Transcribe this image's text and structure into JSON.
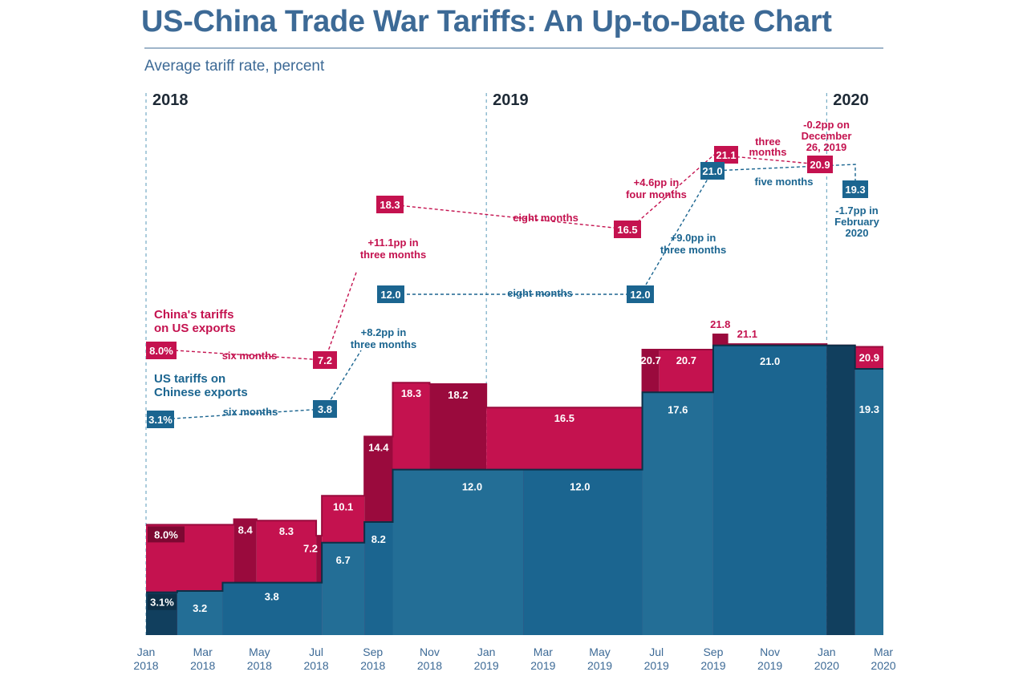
{
  "header": {
    "title": "US-China Trade War Tariffs: An Up-to-Date Chart",
    "subtitle": "Average tariff rate, percent"
  },
  "colors": {
    "china": "#c4124f",
    "china_dark": "#9a0a3d",
    "us": "#1b6590",
    "us_light": "#236e96",
    "us_dark": "#113f5e",
    "axis_text": "#3d6a96",
    "title": "#3d6a96",
    "dash": "#5a9ab9"
  },
  "chart_data": {
    "type": "area",
    "title": "US-China Trade War Tariffs: An Up-to-Date Chart",
    "ylabel": "Average tariff rate, percent",
    "ylim": [
      0,
      23
    ],
    "x_ticks": [
      {
        "label": "Jan",
        "year": "2018",
        "x": 0
      },
      {
        "label": "Mar",
        "year": "2018",
        "x": 2
      },
      {
        "label": "May",
        "year": "2018",
        "x": 4
      },
      {
        "label": "Jul",
        "year": "2018",
        "x": 6
      },
      {
        "label": "Sep",
        "year": "2018",
        "x": 8
      },
      {
        "label": "Nov",
        "year": "2018",
        "x": 10
      },
      {
        "label": "Jan",
        "year": "2019",
        "x": 12
      },
      {
        "label": "Mar",
        "year": "2019",
        "x": 14
      },
      {
        "label": "May",
        "year": "2019",
        "x": 16
      },
      {
        "label": "Jul",
        "year": "2019",
        "x": 18
      },
      {
        "label": "Sep",
        "year": "2019",
        "x": 20
      },
      {
        "label": "Nov",
        "year": "2019",
        "x": 22
      },
      {
        "label": "Jan",
        "year": "2020",
        "x": 24
      },
      {
        "label": "Mar",
        "year": "2020",
        "x": 26
      }
    ],
    "years": [
      {
        "label": "2018",
        "x": 0
      },
      {
        "label": "2019",
        "x": 12
      },
      {
        "label": "2020",
        "x": 24
      }
    ],
    "series": [
      {
        "name": "China's tariffs on US exports",
        "steps": [
          {
            "x0": 0,
            "x1": 3.1,
            "y": 8.0,
            "label": "8.0%"
          },
          {
            "x0": 3.1,
            "x1": 3.9,
            "y": 8.4,
            "label": "8.4"
          },
          {
            "x0": 3.9,
            "x1": 6.0,
            "y": 8.3,
            "label": "8.3"
          },
          {
            "x0": 6.0,
            "x1": 6.2,
            "y": 7.2,
            "label": "7.2"
          },
          {
            "x0": 6.2,
            "x1": 7.7,
            "y": 10.1,
            "label": "10.1"
          },
          {
            "x0": 7.7,
            "x1": 8.7,
            "y": 14.4,
            "label": "14.4"
          },
          {
            "x0": 8.7,
            "x1": 10.0,
            "y": 18.3,
            "label": "18.3"
          },
          {
            "x0": 10.0,
            "x1": 12.0,
            "y": 18.2,
            "label": "18.2"
          },
          {
            "x0": 12.0,
            "x1": 17.5,
            "y": 16.5,
            "label": "16.5"
          },
          {
            "x0": 17.5,
            "x1": 18.1,
            "y": 20.7,
            "label": "20.7"
          },
          {
            "x0": 18.1,
            "x1": 20.0,
            "y": 20.7,
            "label": "20.7"
          },
          {
            "x0": 20.0,
            "x1": 20.5,
            "y": 21.8,
            "label": "21.8"
          },
          {
            "x0": 20.5,
            "x1": 24.0,
            "y": 21.1,
            "label": "21.1"
          },
          {
            "x0": 24.0,
            "x1": 25.0,
            "y": 21.0,
            "label": ""
          },
          {
            "x0": 25.0,
            "x1": 26.0,
            "y": 20.9,
            "label": "20.9"
          }
        ]
      },
      {
        "name": "US tariffs on Chinese exports",
        "steps": [
          {
            "x0": 0,
            "x1": 1.1,
            "y": 3.1,
            "label": "3.1%"
          },
          {
            "x0": 1.1,
            "x1": 2.7,
            "y": 3.2,
            "label": "3.2"
          },
          {
            "x0": 2.7,
            "x1": 6.2,
            "y": 3.8,
            "label": "3.8"
          },
          {
            "x0": 6.2,
            "x1": 7.7,
            "y": 6.7,
            "label": "6.7"
          },
          {
            "x0": 7.7,
            "x1": 8.7,
            "y": 8.2,
            "label": "8.2"
          },
          {
            "x0": 8.7,
            "x1": 13.3,
            "y": 12.0,
            "label": "12.0"
          },
          {
            "x0": 13.3,
            "x1": 17.5,
            "y": 12.0,
            "label": "12.0"
          },
          {
            "x0": 17.5,
            "x1": 20.0,
            "y": 17.6,
            "label": "17.6"
          },
          {
            "x0": 20.0,
            "x1": 24.0,
            "y": 21.0,
            "label": "21.0"
          },
          {
            "x0": 24.0,
            "x1": 25.0,
            "y": 21.0,
            "label": ""
          },
          {
            "x0": 25.0,
            "x1": 26.0,
            "y": 19.3,
            "label": "19.3"
          }
        ]
      }
    ],
    "summary": {
      "china": {
        "label_lines": [
          "China's tariffs",
          "on US exports"
        ],
        "points": [
          {
            "key": "c1",
            "value": "8.0%"
          },
          {
            "key": "c2",
            "value": "7.2"
          },
          {
            "key": "c3",
            "value": "18.3"
          },
          {
            "key": "c4",
            "value": "16.5"
          },
          {
            "key": "c5",
            "value": "21.1"
          },
          {
            "key": "c6",
            "value": "20.9"
          }
        ],
        "annotations": [
          {
            "key": "ca1",
            "lines": [
              "six months"
            ]
          },
          {
            "key": "ca2",
            "lines": [
              "+11.1pp in",
              "three months"
            ]
          },
          {
            "key": "ca3",
            "lines": [
              "eight months"
            ]
          },
          {
            "key": "ca4",
            "lines": [
              "+4.6pp in",
              "four months"
            ]
          },
          {
            "key": "ca5",
            "lines": [
              "three",
              "months"
            ]
          },
          {
            "key": "ca6",
            "lines": [
              "-0.2pp on",
              "December",
              "26, 2019"
            ]
          }
        ]
      },
      "us": {
        "label_lines": [
          "US tariffs on",
          "Chinese exports"
        ],
        "points": [
          {
            "key": "u1",
            "value": "3.1%"
          },
          {
            "key": "u2",
            "value": "3.8"
          },
          {
            "key": "u3",
            "value": "12.0"
          },
          {
            "key": "u4",
            "value": "12.0"
          },
          {
            "key": "u5",
            "value": "21.0"
          },
          {
            "key": "u6",
            "value": "19.3"
          }
        ],
        "annotations": [
          {
            "key": "ua1",
            "lines": [
              "six months"
            ]
          },
          {
            "key": "ua2",
            "lines": [
              "+8.2pp in",
              "three months"
            ]
          },
          {
            "key": "ua3",
            "lines": [
              "eight months"
            ]
          },
          {
            "key": "ua4",
            "lines": [
              "+9.0pp in",
              "three months"
            ]
          },
          {
            "key": "ua5",
            "lines": [
              "five months"
            ]
          },
          {
            "key": "ua6",
            "lines": [
              "-1.7pp in",
              "February",
              "2020"
            ]
          }
        ]
      }
    }
  }
}
